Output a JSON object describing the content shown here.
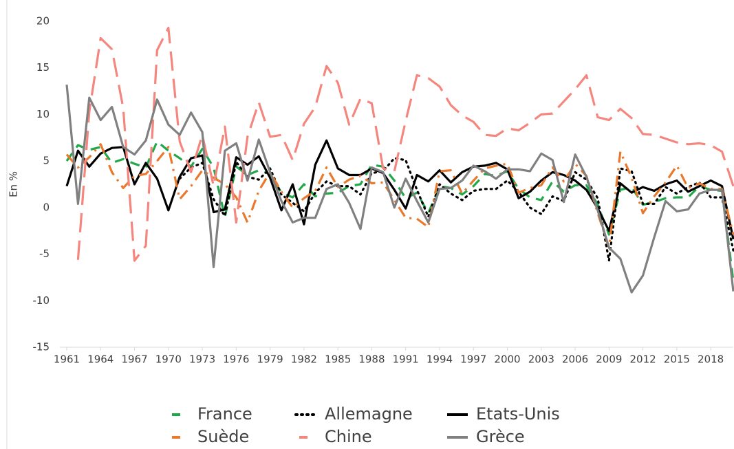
{
  "chart_data": {
    "type": "line",
    "y_label": "En %",
    "x": [
      1961,
      1962,
      1963,
      1964,
      1965,
      1966,
      1967,
      1968,
      1969,
      1970,
      1971,
      1972,
      1973,
      1974,
      1975,
      1976,
      1977,
      1978,
      1979,
      1980,
      1981,
      1982,
      1983,
      1984,
      1985,
      1986,
      1987,
      1988,
      1989,
      1990,
      1991,
      1992,
      1993,
      1994,
      1995,
      1996,
      1997,
      1998,
      1999,
      2000,
      2001,
      2002,
      2003,
      2004,
      2005,
      2006,
      2007,
      2008,
      2009,
      2010,
      2011,
      2012,
      2013,
      2014,
      2015,
      2016,
      2017,
      2018,
      2019,
      2020
    ],
    "xlim": [
      1961,
      2020
    ],
    "xticks": [
      1961,
      1964,
      1967,
      1970,
      1973,
      1976,
      1979,
      1982,
      1985,
      1988,
      1991,
      1994,
      1997,
      2000,
      2003,
      2006,
      2009,
      2012,
      2015,
      2018
    ],
    "ylim": [
      -15,
      20
    ],
    "yticks": [
      -15,
      -10,
      -5,
      0,
      5,
      10,
      15,
      20
    ],
    "grid": false,
    "series": [
      {
        "name": "France",
        "color": "#22a74a",
        "style": "dashed",
        "values": [
          5.0,
          6.7,
          6.2,
          6.5,
          4.8,
          5.2,
          4.7,
          4.3,
          7.1,
          6.1,
          5.3,
          4.4,
          6.3,
          4.3,
          -1.0,
          4.4,
          3.5,
          4.0,
          3.6,
          1.6,
          1.1,
          2.5,
          1.2,
          1.5,
          1.6,
          2.3,
          2.5,
          4.6,
          4.4,
          2.9,
          1.0,
          1.6,
          -0.6,
          2.3,
          2.1,
          1.4,
          2.3,
          3.6,
          3.4,
          3.9,
          2.0,
          1.1,
          0.8,
          2.8,
          1.7,
          2.4,
          2.4,
          0.3,
          -2.9,
          1.9,
          2.2,
          0.3,
          0.6,
          1.0,
          1.1,
          1.1,
          2.3,
          1.9,
          1.8,
          -7.9
        ]
      },
      {
        "name": "Allemagne",
        "color": "#000000",
        "style": "dotted",
        "values": [
          null,
          null,
          null,
          null,
          null,
          null,
          null,
          null,
          null,
          null,
          3.1,
          4.3,
          4.8,
          0.9,
          -0.9,
          4.9,
          3.3,
          3.0,
          4.2,
          1.4,
          0.5,
          -0.4,
          1.6,
          2.8,
          2.3,
          2.3,
          1.4,
          3.7,
          3.9,
          5.3,
          5.1,
          1.9,
          -1.0,
          2.5,
          1.5,
          0.8,
          1.8,
          2.0,
          2.0,
          2.9,
          1.7,
          0.0,
          -0.7,
          1.2,
          0.7,
          3.8,
          3.0,
          1.0,
          -5.7,
          4.2,
          3.9,
          0.4,
          0.4,
          2.2,
          1.5,
          2.2,
          2.7,
          1.1,
          1.1,
          -4.6
        ]
      },
      {
        "name": "Etats-Unis",
        "color": "#000000",
        "style": "solid",
        "values": [
          2.3,
          6.1,
          4.4,
          5.8,
          6.4,
          6.5,
          2.5,
          4.8,
          3.1,
          -0.3,
          3.3,
          5.3,
          5.6,
          -0.5,
          -0.2,
          5.4,
          4.6,
          5.5,
          3.2,
          -0.3,
          2.5,
          -1.8,
          4.6,
          7.2,
          4.2,
          3.5,
          3.5,
          4.2,
          3.7,
          1.9,
          -0.1,
          3.5,
          2.8,
          4.0,
          2.7,
          3.8,
          4.4,
          4.5,
          4.8,
          4.1,
          1.0,
          1.7,
          2.9,
          3.8,
          3.5,
          2.9,
          1.9,
          -0.1,
          -2.5,
          2.6,
          1.6,
          2.2,
          1.8,
          2.5,
          2.9,
          1.7,
          2.3,
          2.9,
          2.3,
          -3.4
        ]
      },
      {
        "name": "Suède",
        "color": "#e8792d",
        "style": "dashdot",
        "values": [
          5.7,
          4.3,
          5.4,
          6.8,
          3.8,
          2.1,
          3.4,
          3.6,
          5.0,
          6.5,
          0.9,
          2.3,
          4.0,
          3.2,
          2.5,
          1.1,
          -1.6,
          1.8,
          3.8,
          1.7,
          0.0,
          1.0,
          1.8,
          4.3,
          2.2,
          3.0,
          3.4,
          2.6,
          2.7,
          0.8,
          -1.1,
          -1.2,
          -2.1,
          3.9,
          4.0,
          1.5,
          2.9,
          4.2,
          4.5,
          4.7,
          1.6,
          2.1,
          2.4,
          4.3,
          2.8,
          4.7,
          3.4,
          -0.6,
          -4.3,
          6.0,
          3.2,
          -0.6,
          1.2,
          2.7,
          4.5,
          2.1,
          2.6,
          2.0,
          2.0,
          -2.9
        ]
      },
      {
        "name": "Chine",
        "color": "#f5867e",
        "style": "longdash",
        "values": [
          null,
          -5.6,
          10.3,
          18.2,
          17.0,
          10.7,
          -5.7,
          -4.1,
          16.9,
          19.3,
          7.1,
          3.8,
          7.8,
          2.3,
          8.7,
          -1.6,
          7.6,
          11.3,
          7.6,
          7.8,
          5.1,
          9.0,
          10.8,
          15.2,
          13.4,
          8.9,
          11.7,
          11.2,
          4.2,
          3.9,
          9.3,
          14.2,
          13.9,
          13.0,
          11.0,
          9.9,
          9.2,
          7.8,
          7.7,
          8.5,
          8.3,
          9.1,
          10.0,
          10.1,
          11.4,
          12.7,
          14.2,
          9.7,
          9.4,
          10.6,
          9.6,
          7.9,
          7.8,
          7.4,
          7.0,
          6.8,
          6.9,
          6.7,
          6.0,
          2.3
        ]
      },
      {
        "name": "Grèce",
        "color": "#808080",
        "style": "solid",
        "values": [
          13.2,
          0.4,
          11.8,
          9.4,
          10.8,
          6.5,
          5.7,
          7.2,
          11.6,
          8.9,
          7.8,
          10.2,
          8.1,
          -6.4,
          6.1,
          6.9,
          2.9,
          7.3,
          3.8,
          0.7,
          -1.6,
          -1.1,
          -1.1,
          2.0,
          2.5,
          0.5,
          -2.3,
          4.3,
          3.8,
          0.0,
          3.1,
          0.7,
          -1.6,
          2.0,
          2.1,
          2.9,
          4.5,
          3.9,
          3.1,
          4.1,
          4.1,
          3.9,
          5.8,
          5.1,
          0.6,
          5.7,
          3.3,
          -0.3,
          -4.3,
          -5.5,
          -9.1,
          -7.3,
          -3.2,
          0.7,
          -0.4,
          -0.2,
          1.5,
          1.9,
          1.9,
          -9.0
        ]
      }
    ]
  }
}
